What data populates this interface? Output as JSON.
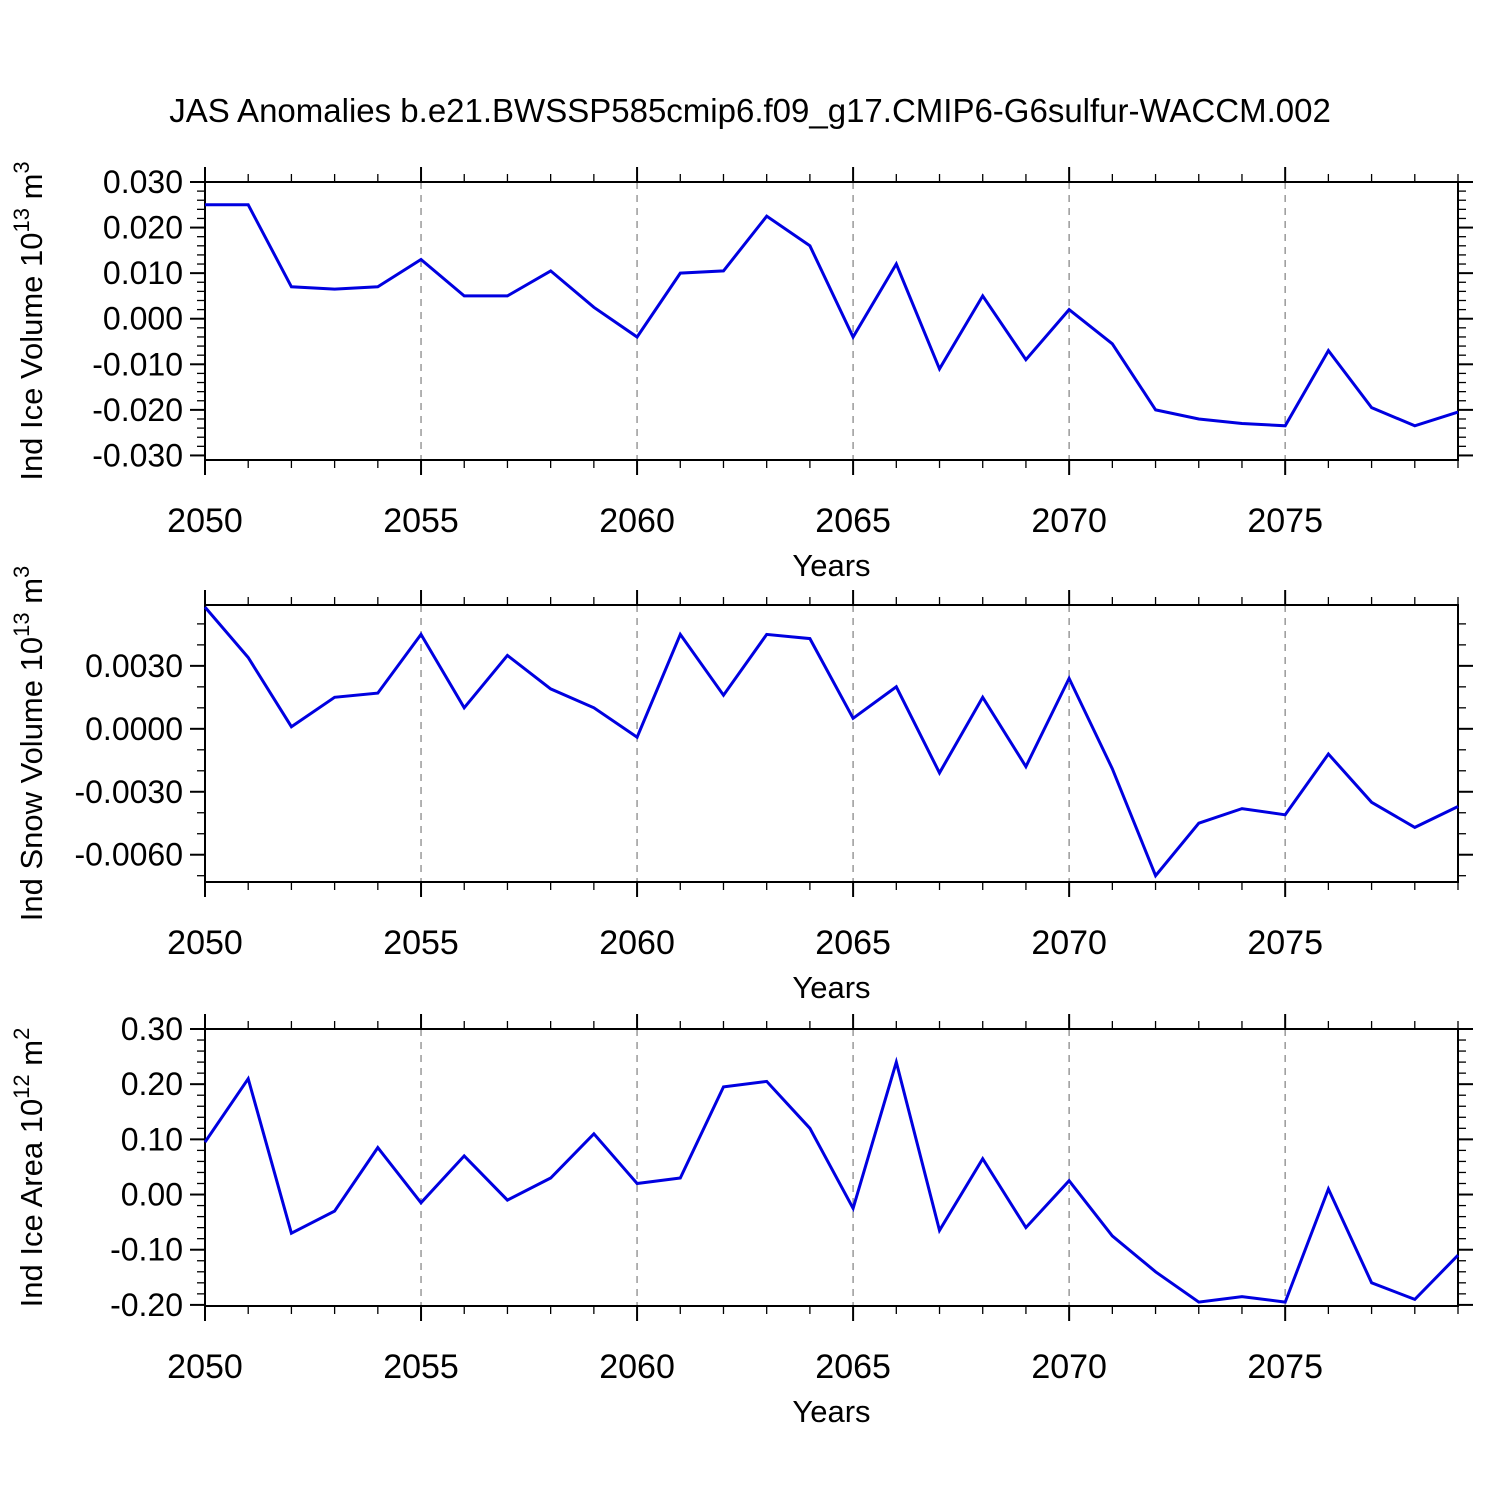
{
  "title": "JAS Anomalies b.e21.BWSSP585cmip6.f09_g17.CMIP6-G6sulfur-WACCM.002",
  "colors": {
    "line": "#0000e0",
    "grid": "#999999",
    "axis": "#000000",
    "background": "#ffffff",
    "text": "#000000"
  },
  "chart_data": [
    {
      "type": "line",
      "id": "ind-ice-volume",
      "ylabel": "Ind Ice Volume 10^13 m^3",
      "ylabel_parts": [
        {
          "t": "Ind Ice Volume 10"
        },
        {
          "t": "13",
          "sup": true
        },
        {
          "t": " m"
        },
        {
          "t": "3",
          "sup": true
        }
      ],
      "xlabel": "Years",
      "x": [
        2050,
        2051,
        2052,
        2053,
        2054,
        2055,
        2056,
        2057,
        2058,
        2059,
        2060,
        2061,
        2062,
        2063,
        2064,
        2065,
        2066,
        2067,
        2068,
        2069,
        2070,
        2071,
        2072,
        2073,
        2074,
        2075,
        2076,
        2077,
        2078,
        2079
      ],
      "values": [
        0.025,
        0.025,
        0.007,
        0.0065,
        0.007,
        0.013,
        0.005,
        0.005,
        0.0105,
        0.0025,
        -0.004,
        0.01,
        0.0105,
        0.0225,
        0.016,
        -0.004,
        0.012,
        -0.011,
        0.005,
        -0.009,
        0.002,
        -0.0055,
        -0.02,
        -0.022,
        -0.023,
        -0.0235,
        -0.007,
        -0.0195,
        -0.0235,
        -0.0205
      ],
      "xlim": [
        2050,
        2079
      ],
      "ylim": [
        -0.031,
        0.03
      ],
      "yticks": [
        {
          "v": 0.03,
          "label": "0.030"
        },
        {
          "v": 0.02,
          "label": "0.020"
        },
        {
          "v": 0.01,
          "label": "0.010"
        },
        {
          "v": 0.0,
          "label": "0.000"
        },
        {
          "v": -0.01,
          "label": "-0.010"
        },
        {
          "v": -0.02,
          "label": "-0.020"
        },
        {
          "v": -0.03,
          "label": "-0.030"
        }
      ],
      "y_major_step": 0.01,
      "y_minor_step": 0.002,
      "x_major_ticks": [
        {
          "v": 2050,
          "label": "2050"
        },
        {
          "v": 2055,
          "label": "2055"
        },
        {
          "v": 2060,
          "label": "2060"
        },
        {
          "v": 2065,
          "label": "2065"
        },
        {
          "v": 2070,
          "label": "2070"
        },
        {
          "v": 2075,
          "label": "2075"
        }
      ],
      "x_minor_step": 1,
      "gridlines_x": [
        2055,
        2060,
        2065,
        2070,
        2075
      ],
      "grid": true,
      "legend": "none"
    },
    {
      "type": "line",
      "id": "ind-snow-volume",
      "ylabel": "Ind Snow Volume 10^13 m^3",
      "ylabel_parts": [
        {
          "t": "Ind Snow Volume 10"
        },
        {
          "t": "13",
          "sup": true
        },
        {
          "t": " m"
        },
        {
          "t": "3",
          "sup": true
        }
      ],
      "xlabel": "Years",
      "x": [
        2050,
        2051,
        2052,
        2053,
        2054,
        2055,
        2056,
        2057,
        2058,
        2059,
        2060,
        2061,
        2062,
        2063,
        2064,
        2065,
        2066,
        2067,
        2068,
        2069,
        2070,
        2071,
        2072,
        2073,
        2074,
        2075,
        2076,
        2077,
        2078,
        2079
      ],
      "values": [
        0.0058,
        0.0034,
        0.0001,
        0.0015,
        0.0017,
        0.0045,
        0.001,
        0.0035,
        0.0019,
        0.001,
        -0.0004,
        0.0045,
        0.0016,
        0.0045,
        0.0043,
        0.0005,
        0.002,
        -0.0021,
        0.0015,
        -0.0018,
        0.0024,
        -0.0019,
        -0.007,
        -0.0045,
        -0.0038,
        -0.0041,
        -0.0012,
        -0.0035,
        -0.0047,
        -0.0037
      ],
      "xlim": [
        2050,
        2079
      ],
      "ylim": [
        -0.0073,
        0.0059
      ],
      "yticks": [
        {
          "v": 0.003,
          "label": "0.0030"
        },
        {
          "v": 0.0,
          "label": "0.0000"
        },
        {
          "v": -0.003,
          "label": "-0.0030"
        },
        {
          "v": -0.006,
          "label": "-0.0060"
        }
      ],
      "y_major_step": 0.003,
      "y_minor_step": 0.001,
      "x_major_ticks": [
        {
          "v": 2050,
          "label": "2050"
        },
        {
          "v": 2055,
          "label": "2055"
        },
        {
          "v": 2060,
          "label": "2060"
        },
        {
          "v": 2065,
          "label": "2065"
        },
        {
          "v": 2070,
          "label": "2070"
        },
        {
          "v": 2075,
          "label": "2075"
        }
      ],
      "x_minor_step": 1,
      "gridlines_x": [
        2055,
        2060,
        2065,
        2070,
        2075
      ],
      "grid": true,
      "legend": "none"
    },
    {
      "type": "line",
      "id": "ind-ice-area",
      "ylabel": "Ind Ice Area 10^12 m^2",
      "ylabel_parts": [
        {
          "t": "Ind Ice Area 10"
        },
        {
          "t": "12",
          "sup": true
        },
        {
          "t": " m"
        },
        {
          "t": "2",
          "sup": true
        }
      ],
      "xlabel": "Years",
      "x": [
        2050,
        2051,
        2052,
        2053,
        2054,
        2055,
        2056,
        2057,
        2058,
        2059,
        2060,
        2061,
        2062,
        2063,
        2064,
        2065,
        2066,
        2067,
        2068,
        2069,
        2070,
        2071,
        2072,
        2073,
        2074,
        2075,
        2076,
        2077,
        2078,
        2079
      ],
      "values": [
        0.095,
        0.21,
        -0.07,
        -0.03,
        0.085,
        -0.015,
        0.07,
        -0.01,
        0.03,
        0.11,
        0.02,
        0.03,
        0.195,
        0.205,
        0.12,
        -0.025,
        0.24,
        -0.065,
        0.065,
        -0.06,
        0.025,
        -0.075,
        -0.14,
        -0.195,
        -0.185,
        -0.195,
        0.01,
        -0.16,
        -0.19,
        -0.11
      ],
      "xlim": [
        2050,
        2079
      ],
      "ylim": [
        -0.202,
        0.3
      ],
      "yticks": [
        {
          "v": 0.3,
          "label": "0.30"
        },
        {
          "v": 0.2,
          "label": "0.20"
        },
        {
          "v": 0.1,
          "label": "0.10"
        },
        {
          "v": 0.0,
          "label": "0.00"
        },
        {
          "v": -0.1,
          "label": "-0.10"
        },
        {
          "v": -0.2,
          "label": "-0.20"
        }
      ],
      "y_major_step": 0.1,
      "y_minor_step": 0.02,
      "x_major_ticks": [
        {
          "v": 2050,
          "label": "2050"
        },
        {
          "v": 2055,
          "label": "2055"
        },
        {
          "v": 2060,
          "label": "2060"
        },
        {
          "v": 2065,
          "label": "2065"
        },
        {
          "v": 2070,
          "label": "2070"
        },
        {
          "v": 2075,
          "label": "2075"
        }
      ],
      "x_minor_step": 1,
      "gridlines_x": [
        2055,
        2060,
        2065,
        2070,
        2075
      ],
      "grid": true,
      "legend": "none"
    }
  ]
}
